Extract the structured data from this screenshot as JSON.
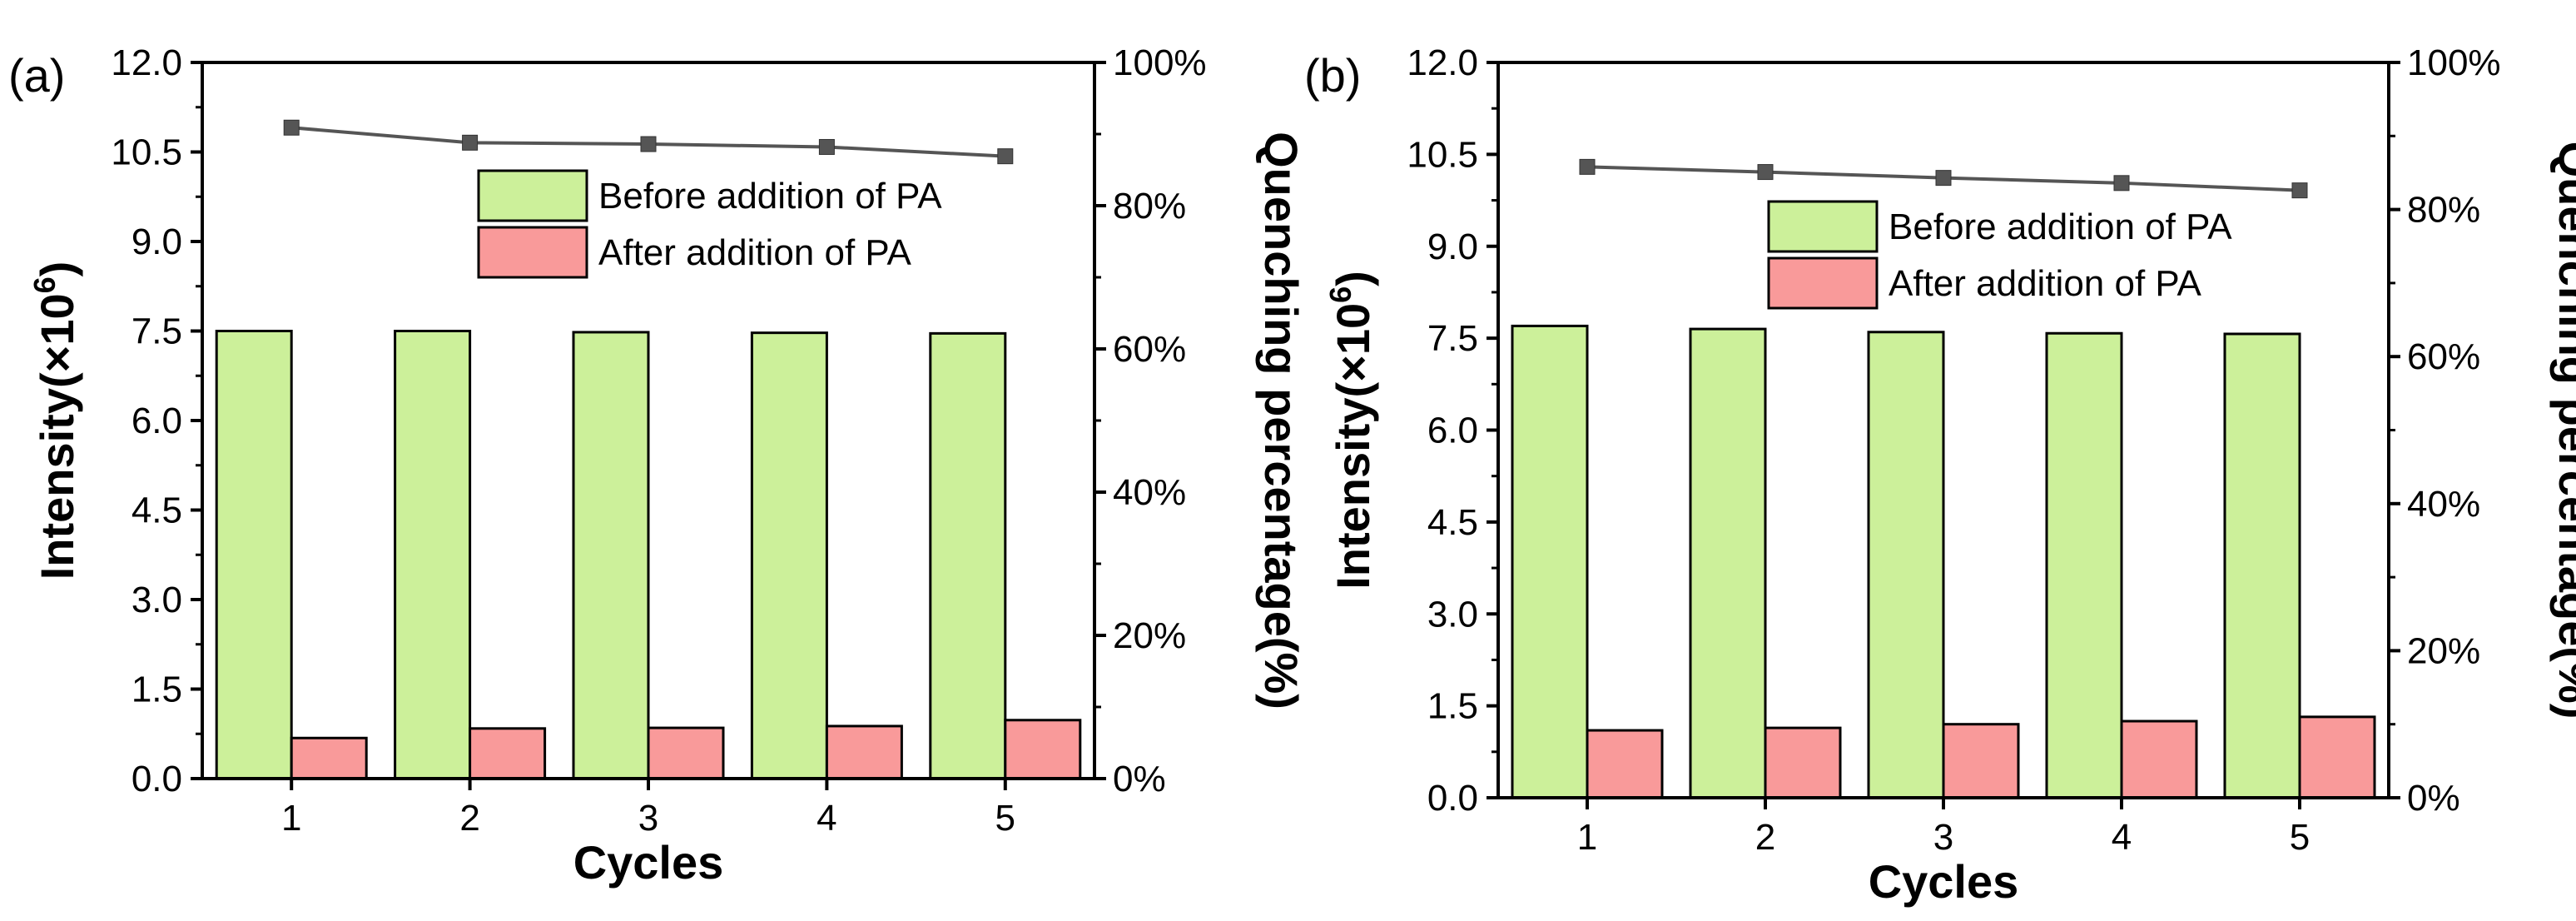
{
  "chart_data": [
    {
      "panel_label": "(a)",
      "type": "bar",
      "categories": [
        "1",
        "2",
        "3",
        "4",
        "5"
      ],
      "xlabel": "Cycles",
      "ylabel_prefix": "Intensity(×10",
      "ylabel_exp": "6",
      "ylabel_suffix": ")",
      "ylim": [
        0,
        12
      ],
      "yticks": [
        "0.0",
        "1.5",
        "3.0",
        "4.5",
        "6.0",
        "7.5",
        "9.0",
        "10.5",
        "12.0"
      ],
      "y2label": "Quenching percentage(%)",
      "y2lim": [
        0,
        100
      ],
      "y2ticks": [
        "0%",
        "20%",
        "40%",
        "60%",
        "80%",
        "100%"
      ],
      "series": [
        {
          "name": "Before addition of PA",
          "kind": "bar",
          "color": "#ccf09a",
          "values": [
            7.5,
            7.5,
            7.48,
            7.47,
            7.46
          ]
        },
        {
          "name": "After addition of PA",
          "kind": "bar",
          "color": "#f99a9a",
          "values": [
            0.68,
            0.84,
            0.85,
            0.88,
            0.98
          ]
        },
        {
          "name": "Quenching percentage",
          "kind": "line",
          "axis": "right",
          "color": "#555555",
          "values": [
            90.9,
            88.8,
            88.6,
            88.2,
            86.9
          ]
        }
      ]
    },
    {
      "panel_label": "(b)",
      "type": "bar",
      "categories": [
        "1",
        "2",
        "3",
        "4",
        "5"
      ],
      "xlabel": "Cycles",
      "ylabel_prefix": "Intensity(×10",
      "ylabel_exp": "6",
      "ylabel_suffix": ")",
      "ylim": [
        0,
        12
      ],
      "yticks": [
        "0.0",
        "1.5",
        "3.0",
        "4.5",
        "6.0",
        "7.5",
        "9.0",
        "10.5",
        "12.0"
      ],
      "y2label": "Quenching percentage(%)",
      "y2lim": [
        0,
        100
      ],
      "y2ticks": [
        "0%",
        "20%",
        "40%",
        "60%",
        "80%",
        "100%"
      ],
      "series": [
        {
          "name": "Before addition of PA",
          "kind": "bar",
          "color": "#ccf09a",
          "values": [
            7.7,
            7.65,
            7.6,
            7.58,
            7.57
          ]
        },
        {
          "name": "After addition of PA",
          "kind": "bar",
          "color": "#f99a9a",
          "values": [
            1.1,
            1.14,
            1.2,
            1.25,
            1.32
          ]
        },
        {
          "name": "Quenching percentage",
          "kind": "line",
          "axis": "right",
          "color": "#555555",
          "values": [
            85.8,
            85.1,
            84.3,
            83.6,
            82.6
          ]
        }
      ]
    }
  ]
}
